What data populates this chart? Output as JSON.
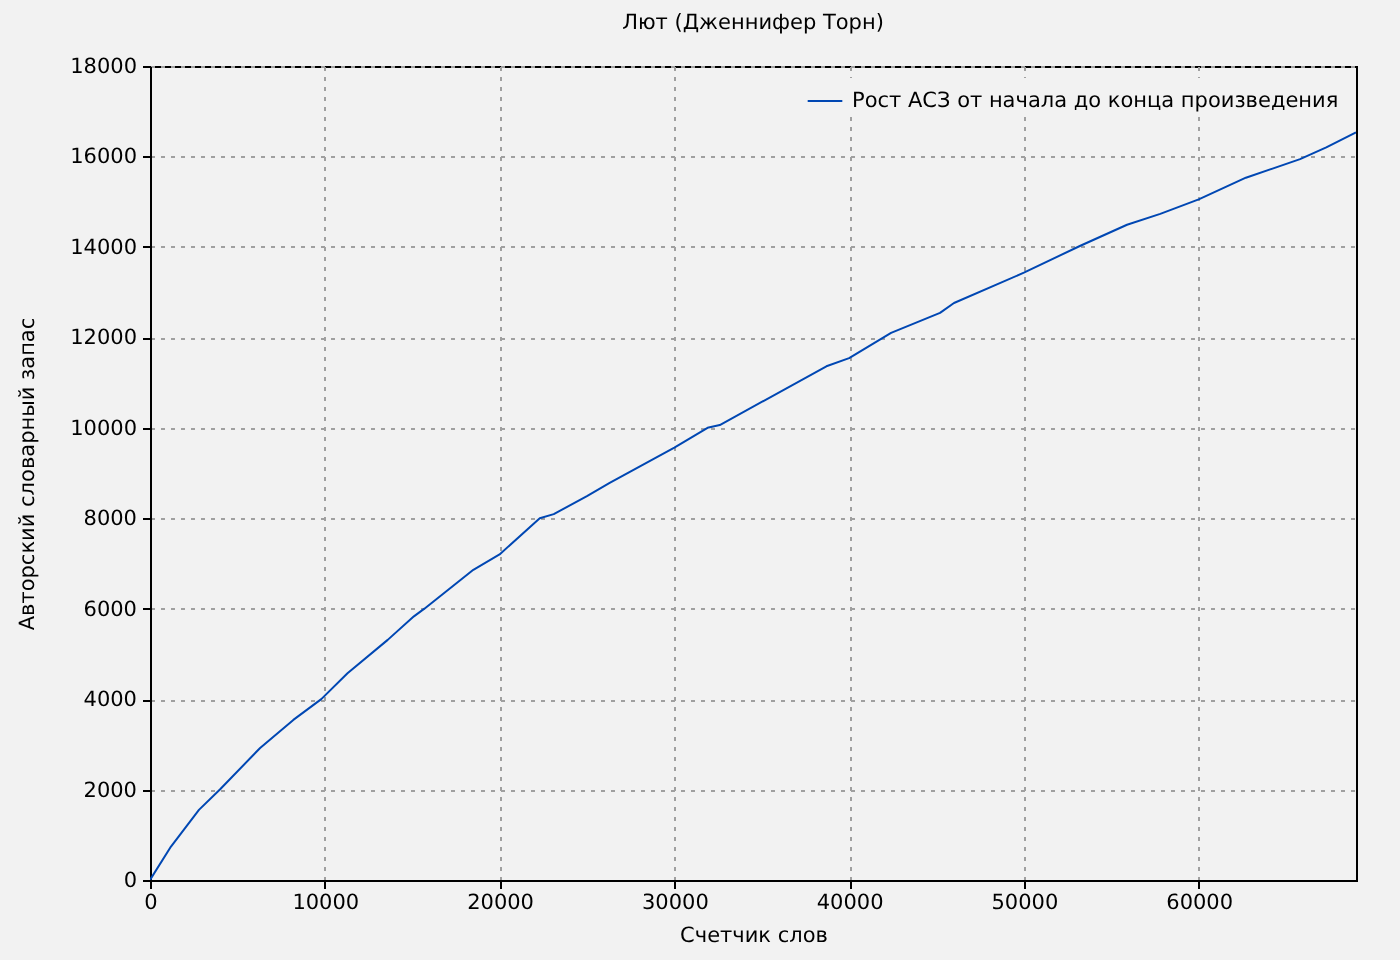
{
  "chart_data": {
    "type": "line",
    "title": "Лют (Дженнифер Торн)",
    "xlabel": "Счетчик слов",
    "ylabel": "Авторский словарный запас",
    "x": [
      0,
      1200,
      2800,
      4000,
      6300,
      8200,
      9800,
      11300,
      13600,
      15100,
      15700,
      18500,
      20000,
      22300,
      23100,
      25000,
      26300,
      30000,
      31900,
      32600,
      38700,
      40000,
      42400,
      45200,
      46000,
      50000,
      53200,
      55900,
      57800,
      60000,
      62700,
      65800,
      67300,
      69000
    ],
    "series": [
      {
        "name": "Рост АСЗ от начала до конца произведения",
        "color": "#0047b3",
        "values": [
          0,
          740,
          1550,
          2000,
          2920,
          3540,
          4000,
          4570,
          5310,
          5830,
          6000,
          6860,
          7200,
          8000,
          8090,
          8490,
          8780,
          9560,
          10000,
          10060,
          11360,
          11540,
          12100,
          12540,
          12760,
          13430,
          14020,
          14490,
          14730,
          15050,
          15530,
          15940,
          16200,
          16530
        ]
      }
    ],
    "xlim": [
      0,
      69000
    ],
    "ylim": [
      0,
      18000
    ],
    "xticks": [
      0,
      10000,
      20000,
      30000,
      40000,
      50000,
      60000
    ],
    "yticks": [
      0,
      2000,
      4000,
      6000,
      8000,
      10000,
      12000,
      14000,
      16000,
      18000
    ],
    "grid": true,
    "legend": "top right"
  }
}
